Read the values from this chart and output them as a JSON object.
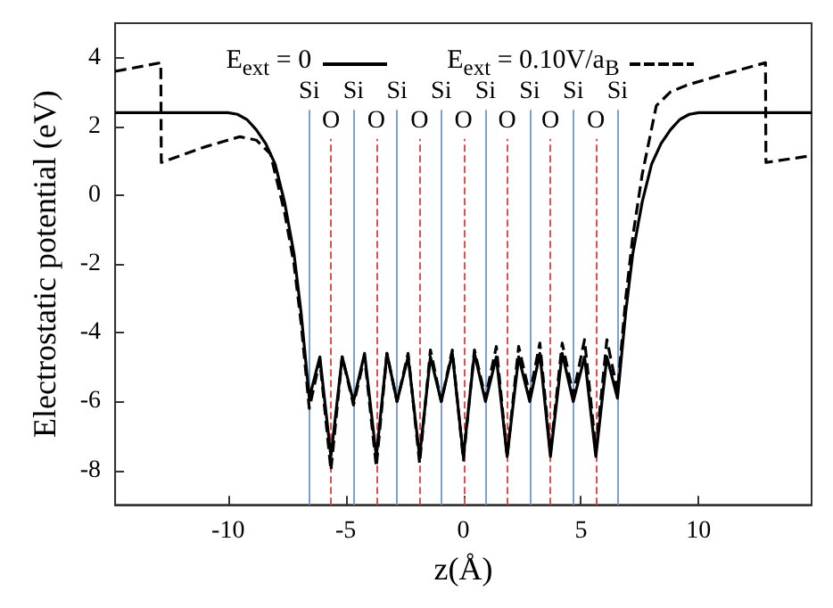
{
  "chart_data": {
    "type": "line",
    "xlabel": "z(Å)",
    "ylabel": "Electrostatic potential (eV)",
    "xlim": [
      -14.8,
      14.8
    ],
    "ylim": [
      -9,
      5
    ],
    "xticks": [
      -10,
      -5,
      0,
      5,
      10
    ],
    "yticks": [
      -8,
      -6,
      -4,
      -2,
      0,
      2,
      4
    ],
    "grid": false,
    "legend": "top",
    "marker": "none",
    "series": [
      {
        "name": "E$_{ext}$ = 0",
        "color": "#000000",
        "line_style": "solid",
        "x": [
          -14.8,
          -10,
          -9.6,
          -9.2,
          -8.8,
          -8.4,
          -8,
          -7.6,
          -7.2,
          -6.9,
          -6.55,
          -6.1,
          -5.63,
          -5.15,
          -4.67,
          -4.2,
          -3.7,
          -3.25,
          -2.82,
          -2.35,
          -1.86,
          -1.4,
          -0.94,
          -0.47,
          0,
          0.47,
          0.94,
          1.4,
          1.86,
          2.35,
          2.82,
          3.25,
          3.7,
          4.2,
          4.67,
          5.15,
          5.63,
          6.1,
          6.55,
          6.9,
          7.2,
          7.6,
          8,
          8.4,
          8.8,
          9.2,
          9.6,
          10,
          14.8
        ],
        "values": [
          2.4,
          2.4,
          2.35,
          2.2,
          1.9,
          1.5,
          0.9,
          -0.2,
          -1.7,
          -3.4,
          -5.9,
          -4.7,
          -7.6,
          -4.7,
          -6.0,
          -4.6,
          -7.6,
          -4.6,
          -6.0,
          -4.7,
          -7.6,
          -4.7,
          -6.0,
          -4.6,
          -7.6,
          -4.6,
          -6.0,
          -4.7,
          -7.6,
          -4.7,
          -6.0,
          -4.6,
          -7.6,
          -4.6,
          -6.0,
          -4.7,
          -7.6,
          -4.7,
          -5.9,
          -3.4,
          -1.7,
          -0.2,
          0.9,
          1.5,
          1.9,
          2.2,
          2.35,
          2.4,
          2.4
        ]
      },
      {
        "name": "E$_{ext}$ = 0.10V/a$_{B}$",
        "color": "#000000",
        "line_style": "dashed",
        "x": [
          -14.8,
          -12.86,
          -12.84,
          -11,
          -9.5,
          -8.8,
          -8.2,
          -7.6,
          -7.2,
          -6.9,
          -6.55,
          -6.1,
          -5.63,
          -5.15,
          -4.67,
          -4.2,
          -3.7,
          -3.25,
          -2.82,
          -2.35,
          -1.86,
          -1.4,
          -0.94,
          -0.47,
          0,
          0.47,
          0.94,
          1.4,
          1.86,
          2.35,
          2.82,
          3.25,
          3.7,
          4.2,
          4.67,
          5.15,
          5.63,
          6.1,
          6.55,
          6.9,
          7.2,
          7.6,
          8.2,
          8.8,
          9.5,
          11,
          12.84,
          12.86,
          14.8
        ],
        "values": [
          3.6,
          3.85,
          0.95,
          1.4,
          1.7,
          1.6,
          1.2,
          -0.5,
          -2.0,
          -3.7,
          -6.2,
          -4.8,
          -8.0,
          -4.7,
          -6.1,
          -4.7,
          -7.9,
          -4.6,
          -6.0,
          -4.6,
          -7.8,
          -4.5,
          -6.0,
          -4.5,
          -7.7,
          -4.5,
          -5.9,
          -4.4,
          -7.6,
          -4.4,
          -5.8,
          -4.3,
          -7.5,
          -4.3,
          -5.8,
          -4.2,
          -7.4,
          -4.2,
          -5.7,
          -3.0,
          -1.2,
          0.6,
          2.6,
          3.0,
          3.2,
          3.5,
          3.85,
          0.95,
          1.15
        ]
      }
    ],
    "ref_lines": [
      {
        "axis": "x",
        "value": -6.55,
        "label": "Si",
        "color": "#7f9fcf",
        "line_style": "solid"
      },
      {
        "axis": "x",
        "value": -4.67,
        "label": "Si",
        "color": "#7f9fcf",
        "line_style": "solid"
      },
      {
        "axis": "x",
        "value": -2.82,
        "label": "Si",
        "color": "#7f9fcf",
        "line_style": "solid"
      },
      {
        "axis": "x",
        "value": -0.94,
        "label": "Si",
        "color": "#7f9fcf",
        "line_style": "solid"
      },
      {
        "axis": "x",
        "value": 0.94,
        "label": "Si",
        "color": "#7f9fcf",
        "line_style": "solid"
      },
      {
        "axis": "x",
        "value": 2.82,
        "label": "Si",
        "color": "#7f9fcf",
        "line_style": "solid"
      },
      {
        "axis": "x",
        "value": 4.67,
        "label": "Si",
        "color": "#7f9fcf",
        "line_style": "solid"
      },
      {
        "axis": "x",
        "value": 6.55,
        "label": "Si",
        "color": "#7f9fcf",
        "line_style": "solid"
      },
      {
        "axis": "x",
        "value": -5.63,
        "label": "O",
        "color": "#e05050",
        "line_style": "dashed"
      },
      {
        "axis": "x",
        "value": -3.7,
        "label": "O",
        "color": "#e05050",
        "line_style": "dashed"
      },
      {
        "axis": "x",
        "value": -1.86,
        "label": "O",
        "color": "#e05050",
        "line_style": "dashed"
      },
      {
        "axis": "x",
        "value": 0,
        "label": "O",
        "color": "#e05050",
        "line_style": "dashed"
      },
      {
        "axis": "x",
        "value": 1.86,
        "label": "O",
        "color": "#e05050",
        "line_style": "dashed"
      },
      {
        "axis": "x",
        "value": 3.7,
        "label": "O",
        "color": "#e05050",
        "line_style": "dashed"
      },
      {
        "axis": "x",
        "value": 5.63,
        "label": "O",
        "color": "#e05050",
        "line_style": "dashed"
      }
    ]
  }
}
